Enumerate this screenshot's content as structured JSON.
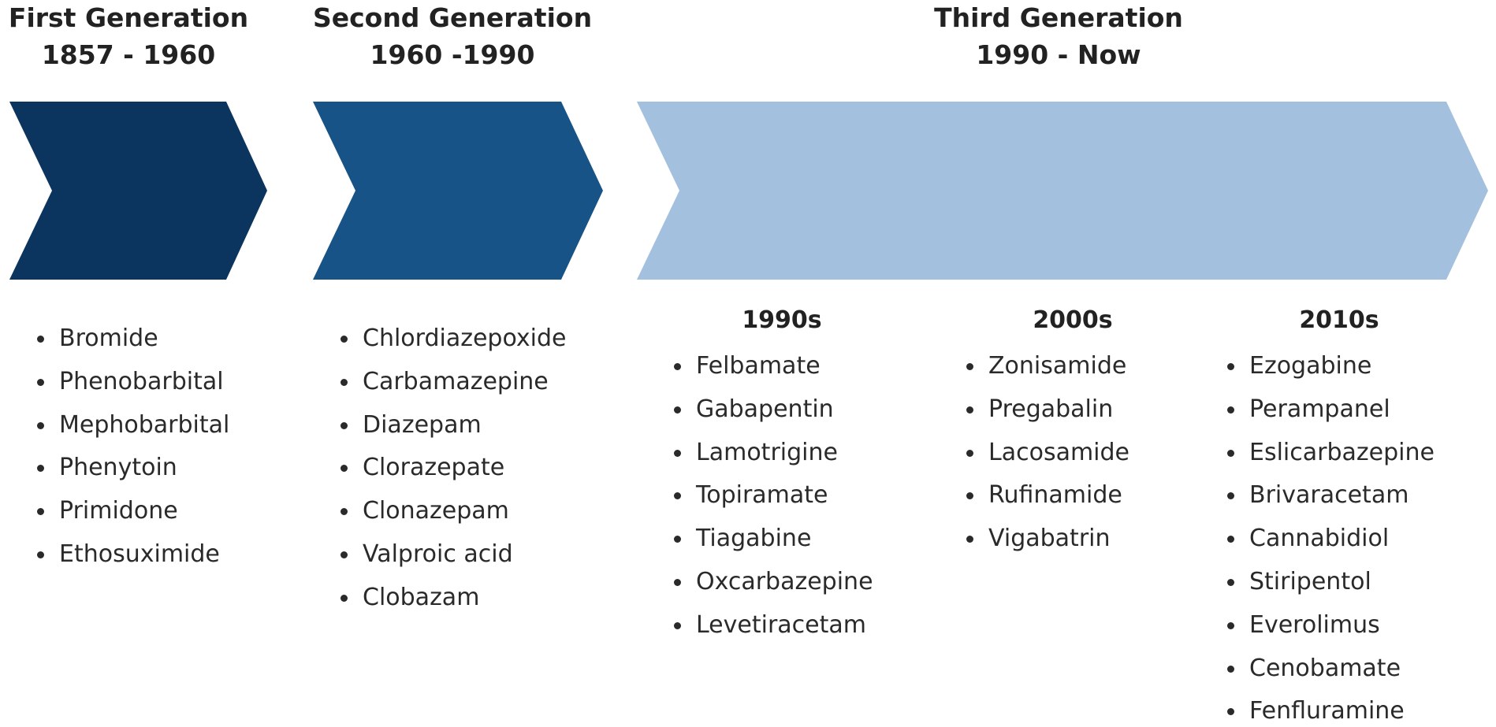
{
  "generations": [
    {
      "title": "First Generation",
      "period": "1857 - 1960",
      "drugs": [
        "Bromide",
        "Phenobarbital",
        "Mephobarbital",
        "Phenytoin",
        "Primidone",
        "Ethosuximide"
      ]
    },
    {
      "title": "Second Generation",
      "period": "1960 -1990",
      "drugs": [
        "Chlordiazepoxide",
        "Carbamazepine",
        "Diazepam",
        "Clorazepate",
        "Clonazepam",
        "Valproic acid",
        "Clobazam"
      ]
    },
    {
      "title": "Third Generation",
      "period": "1990 - Now",
      "decades": [
        {
          "label": "1990s",
          "drugs": [
            "Felbamate",
            "Gabapentin",
            "Lamotrigine",
            "Topiramate",
            "Tiagabine",
            "Oxcarbazepine",
            "Levetiracetam"
          ]
        },
        {
          "label": "2000s",
          "drugs": [
            "Zonisamide",
            "Pregabalin",
            "Lacosamide",
            "Rufinamide",
            "Vigabatrin"
          ]
        },
        {
          "label": "2010s",
          "drugs": [
            "Ezogabine",
            "Perampanel",
            "Eslicarbazepine",
            "Brivaracetam",
            "Cannabidiol",
            "Stiripentol",
            "Everolimus",
            "Cenobamate",
            "Fenfluramine"
          ]
        }
      ]
    }
  ]
}
